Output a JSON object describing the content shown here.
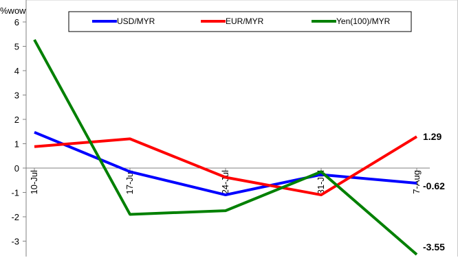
{
  "chart_data": {
    "type": "line",
    "title": "",
    "ylabel": "%wow",
    "xlabel": "",
    "categories": [
      "10-Jul",
      "17-Jul",
      "24-Jul",
      "31-Jul",
      "7-Aug"
    ],
    "ylim": [
      -3.55,
      6
    ],
    "yticks": [
      6,
      5,
      4,
      3,
      2,
      1,
      0,
      -1,
      -2,
      -3
    ],
    "series": [
      {
        "name": "USD/MYR",
        "color": "#0000ff",
        "values": [
          1.47,
          -0.15,
          -1.1,
          -0.27,
          -0.62
        ]
      },
      {
        "name": "EUR/MYR",
        "color": "#ff0000",
        "values": [
          0.88,
          1.2,
          -0.38,
          -1.1,
          1.29
        ]
      },
      {
        "name": "Yen(100)/MYR",
        "color": "#008000",
        "values": [
          5.27,
          -1.9,
          -1.75,
          -0.15,
          -3.55
        ]
      }
    ],
    "end_labels": [
      "1.29",
      "-0.62",
      "-3.55"
    ],
    "legend_position": "top",
    "grid": false
  }
}
